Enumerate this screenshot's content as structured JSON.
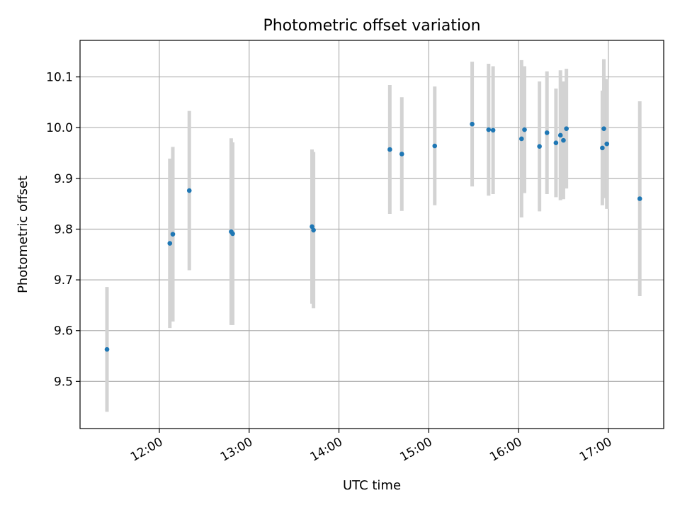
{
  "chart_data": {
    "type": "scatter",
    "title": "Photometric offset variation",
    "xlabel": "UTC time",
    "ylabel": "Photometric offset",
    "x_ticks": [
      "12:00",
      "13:00",
      "14:00",
      "15:00",
      "16:00",
      "17:00"
    ],
    "y_ticks": [
      "9.5",
      "9.6",
      "9.7",
      "9.8",
      "9.9",
      "10.0",
      "10.1"
    ],
    "xlim": [
      "11:07",
      "17:37"
    ],
    "ylim": [
      9.407,
      10.172
    ],
    "grid": true,
    "legend": "none",
    "colors": {
      "point": "#1f77b4",
      "errorbar": "#d3d3d3",
      "grid": "#b0b0b0"
    },
    "points": [
      {
        "x": "11:25",
        "y": 9.563,
        "yerr": 0.123
      },
      {
        "x": "12:07",
        "y": 9.772,
        "yerr": 0.167
      },
      {
        "x": "12:09",
        "y": 9.79,
        "yerr": 0.172
      },
      {
        "x": "12:20",
        "y": 9.876,
        "yerr": 0.157
      },
      {
        "x": "12:48",
        "y": 9.795,
        "yerr": 0.184
      },
      {
        "x": "12:49",
        "y": 9.791,
        "yerr": 0.18
      },
      {
        "x": "13:42",
        "y": 9.805,
        "yerr": 0.152
      },
      {
        "x": "13:43",
        "y": 9.798,
        "yerr": 0.154
      },
      {
        "x": "14:34",
        "y": 9.957,
        "yerr": 0.127
      },
      {
        "x": "14:42",
        "y": 9.948,
        "yerr": 0.112
      },
      {
        "x": "15:04",
        "y": 9.964,
        "yerr": 0.117
      },
      {
        "x": "15:29",
        "y": 10.007,
        "yerr": 0.123
      },
      {
        "x": "15:40",
        "y": 9.996,
        "yerr": 0.13
      },
      {
        "x": "15:43",
        "y": 9.995,
        "yerr": 0.126
      },
      {
        "x": "16:02",
        "y": 9.978,
        "yerr": 0.155
      },
      {
        "x": "16:04",
        "y": 9.996,
        "yerr": 0.125
      },
      {
        "x": "16:14",
        "y": 9.963,
        "yerr": 0.128
      },
      {
        "x": "16:19",
        "y": 9.99,
        "yerr": 0.121
      },
      {
        "x": "16:25",
        "y": 9.97,
        "yerr": 0.107
      },
      {
        "x": "16:28",
        "y": 9.985,
        "yerr": 0.128
      },
      {
        "x": "16:30",
        "y": 9.975,
        "yerr": 0.116
      },
      {
        "x": "16:32",
        "y": 9.998,
        "yerr": 0.118
      },
      {
        "x": "16:56",
        "y": 9.96,
        "yerr": 0.113
      },
      {
        "x": "16:57",
        "y": 9.998,
        "yerr": 0.137
      },
      {
        "x": "16:59",
        "y": 9.968,
        "yerr": 0.128
      },
      {
        "x": "17:21",
        "y": 9.86,
        "yerr": 0.192
      }
    ]
  }
}
